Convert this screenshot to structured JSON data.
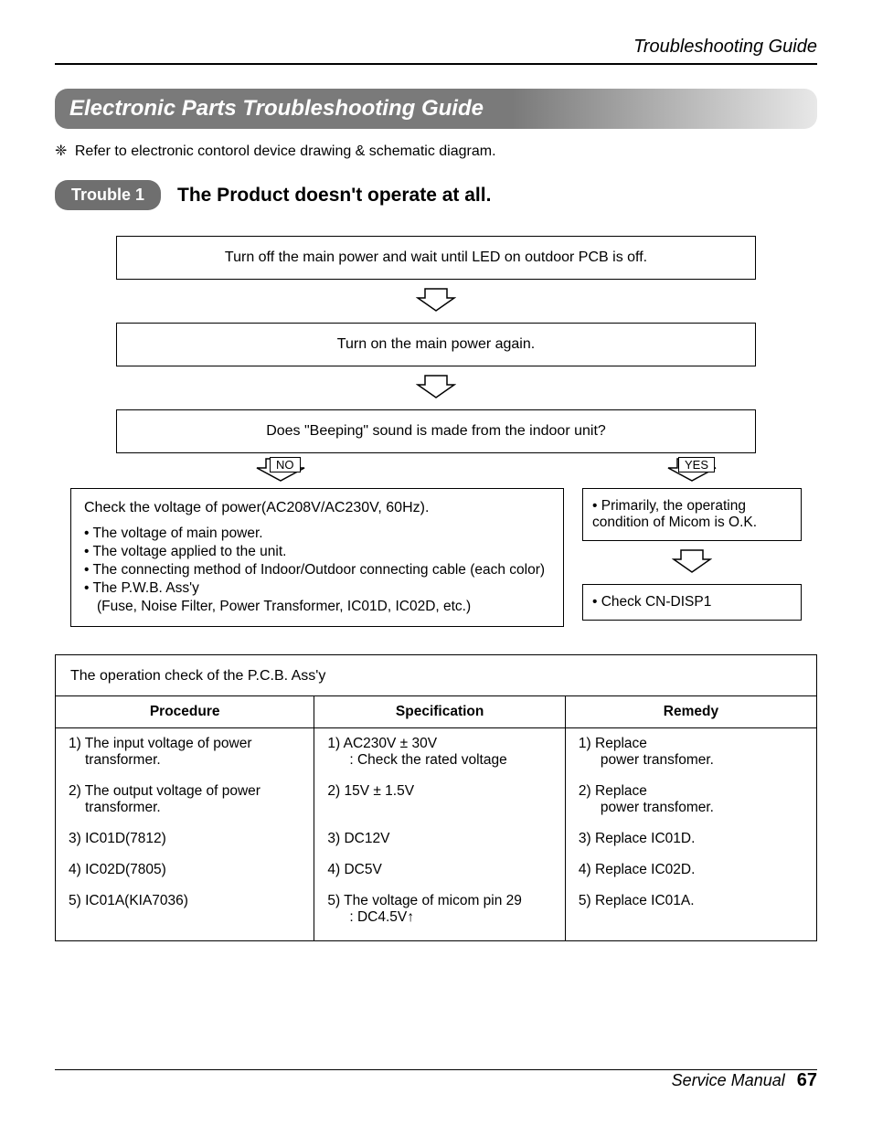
{
  "header": {
    "title": "Troubleshooting Guide"
  },
  "section": {
    "banner": "Electronic Parts Troubleshooting Guide"
  },
  "note": {
    "marker": "❈",
    "text": "Refer to electronic contorol device drawing & schematic diagram."
  },
  "trouble": {
    "badge": "Trouble 1",
    "title": "The Product doesn't operate at all."
  },
  "flow": {
    "step1": "Turn off the main power and wait until LED on outdoor PCB is off.",
    "step2": "Turn on the main power again.",
    "step3": "Does \"Beeping\" sound is made from the indoor unit?",
    "no_label": "NO",
    "yes_label": "YES",
    "no_box_head": "Check the voltage of power(AC208V/AC230V, 60Hz).",
    "no_bullets": [
      "The voltage of main power.",
      "The voltage applied to the unit.",
      "The connecting method of Indoor/Outdoor connecting cable (each color)",
      "The P.W.B. Ass'y"
    ],
    "no_sub": "(Fuse, Noise Filter, Power Transformer, IC01D, IC02D, etc.)",
    "yes_box1": "• Primarily, the operating condition of Micom is O.K.",
    "yes_box2": "• Check CN-DISP1"
  },
  "table": {
    "title": "The operation check of the P.C.B. Ass'y",
    "columns": [
      "Procedure",
      "Specification",
      "Remedy"
    ],
    "col_widths": [
      "34%",
      "33%",
      "33%"
    ],
    "rows": [
      {
        "proc": "1) The input voltage of power transformer.",
        "spec": "1) AC230V ± 30V\n: Check the rated voltage",
        "rem": "1) Replace\npower transfomer."
      },
      {
        "proc": "2) The output voltage of power transformer.",
        "spec": "2) 15V ± 1.5V",
        "rem": "2) Replace\npower transfomer."
      },
      {
        "proc": "3) IC01D(7812)",
        "spec": "3) DC12V",
        "rem": "3) Replace IC01D."
      },
      {
        "proc": "4) IC02D(7805)",
        "spec": "4) DC5V",
        "rem": "4) Replace IC02D."
      },
      {
        "proc": "5) IC01A(KIA7036)",
        "spec": "5) The voltage of micom pin 29\n: DC4.5V↑",
        "rem": "5) Replace IC01A."
      }
    ]
  },
  "footer": {
    "text": "Service Manual",
    "page": "67"
  },
  "colors": {
    "banner_start": "#7a7a7a",
    "banner_end": "#e8e8e8",
    "badge_bg": "#6f6f6f",
    "text": "#000000",
    "bg": "#ffffff"
  },
  "arrow_svg": {
    "width": 44,
    "height": 30
  }
}
